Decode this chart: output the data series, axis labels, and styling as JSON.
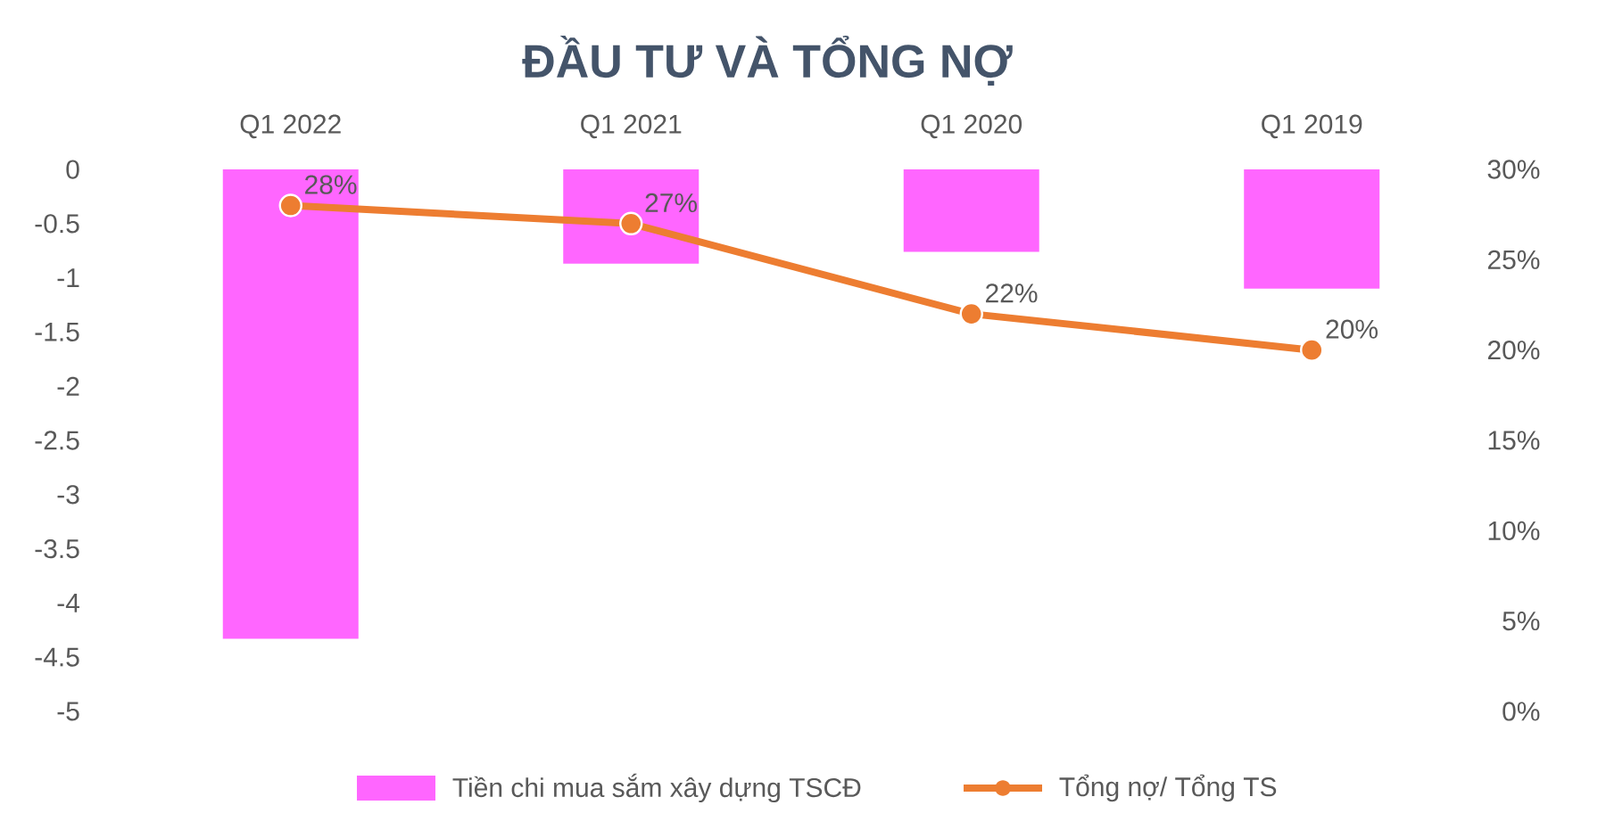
{
  "chart_data": {
    "type": "bar",
    "title": "ĐẦU TƯ VÀ TỔNG NỢ",
    "categories": [
      "Q1 2022",
      "Q1 2021",
      "Q1 2020",
      "Q1 2019"
    ],
    "series": [
      {
        "name": "Tiền chi mua sắm xây dựng TSCĐ",
        "color": "#ff66ff",
        "values": [
          -4.33,
          -0.87,
          -0.76,
          -1.1
        ]
      },
      {
        "name": "Tổng nợ/ Tổng TS",
        "type": "line",
        "color": "#ed7d31",
        "axis": "y2",
        "values": [
          28,
          27,
          22,
          20
        ],
        "value_labels": [
          "28%",
          "27%",
          "22%",
          "20%"
        ]
      }
    ],
    "ylim": [
      -5,
      0
    ],
    "yticks": [
      0,
      -0.5,
      -1,
      -1.5,
      -2,
      -2.5,
      -3,
      -3.5,
      -4,
      -4.5,
      -5
    ],
    "y2lim": [
      0,
      30
    ],
    "y2ticks": [
      {
        "value": 0,
        "label": "0%"
      },
      {
        "value": 5,
        "label": "5%"
      },
      {
        "value": 10,
        "label": "10%"
      },
      {
        "value": 15,
        "label": "15%"
      },
      {
        "value": 20,
        "label": "20%"
      },
      {
        "value": 25,
        "label": "25%"
      },
      {
        "value": 30,
        "label": "30%"
      }
    ],
    "marker": "circle",
    "legend": "bottom",
    "grid": false
  }
}
